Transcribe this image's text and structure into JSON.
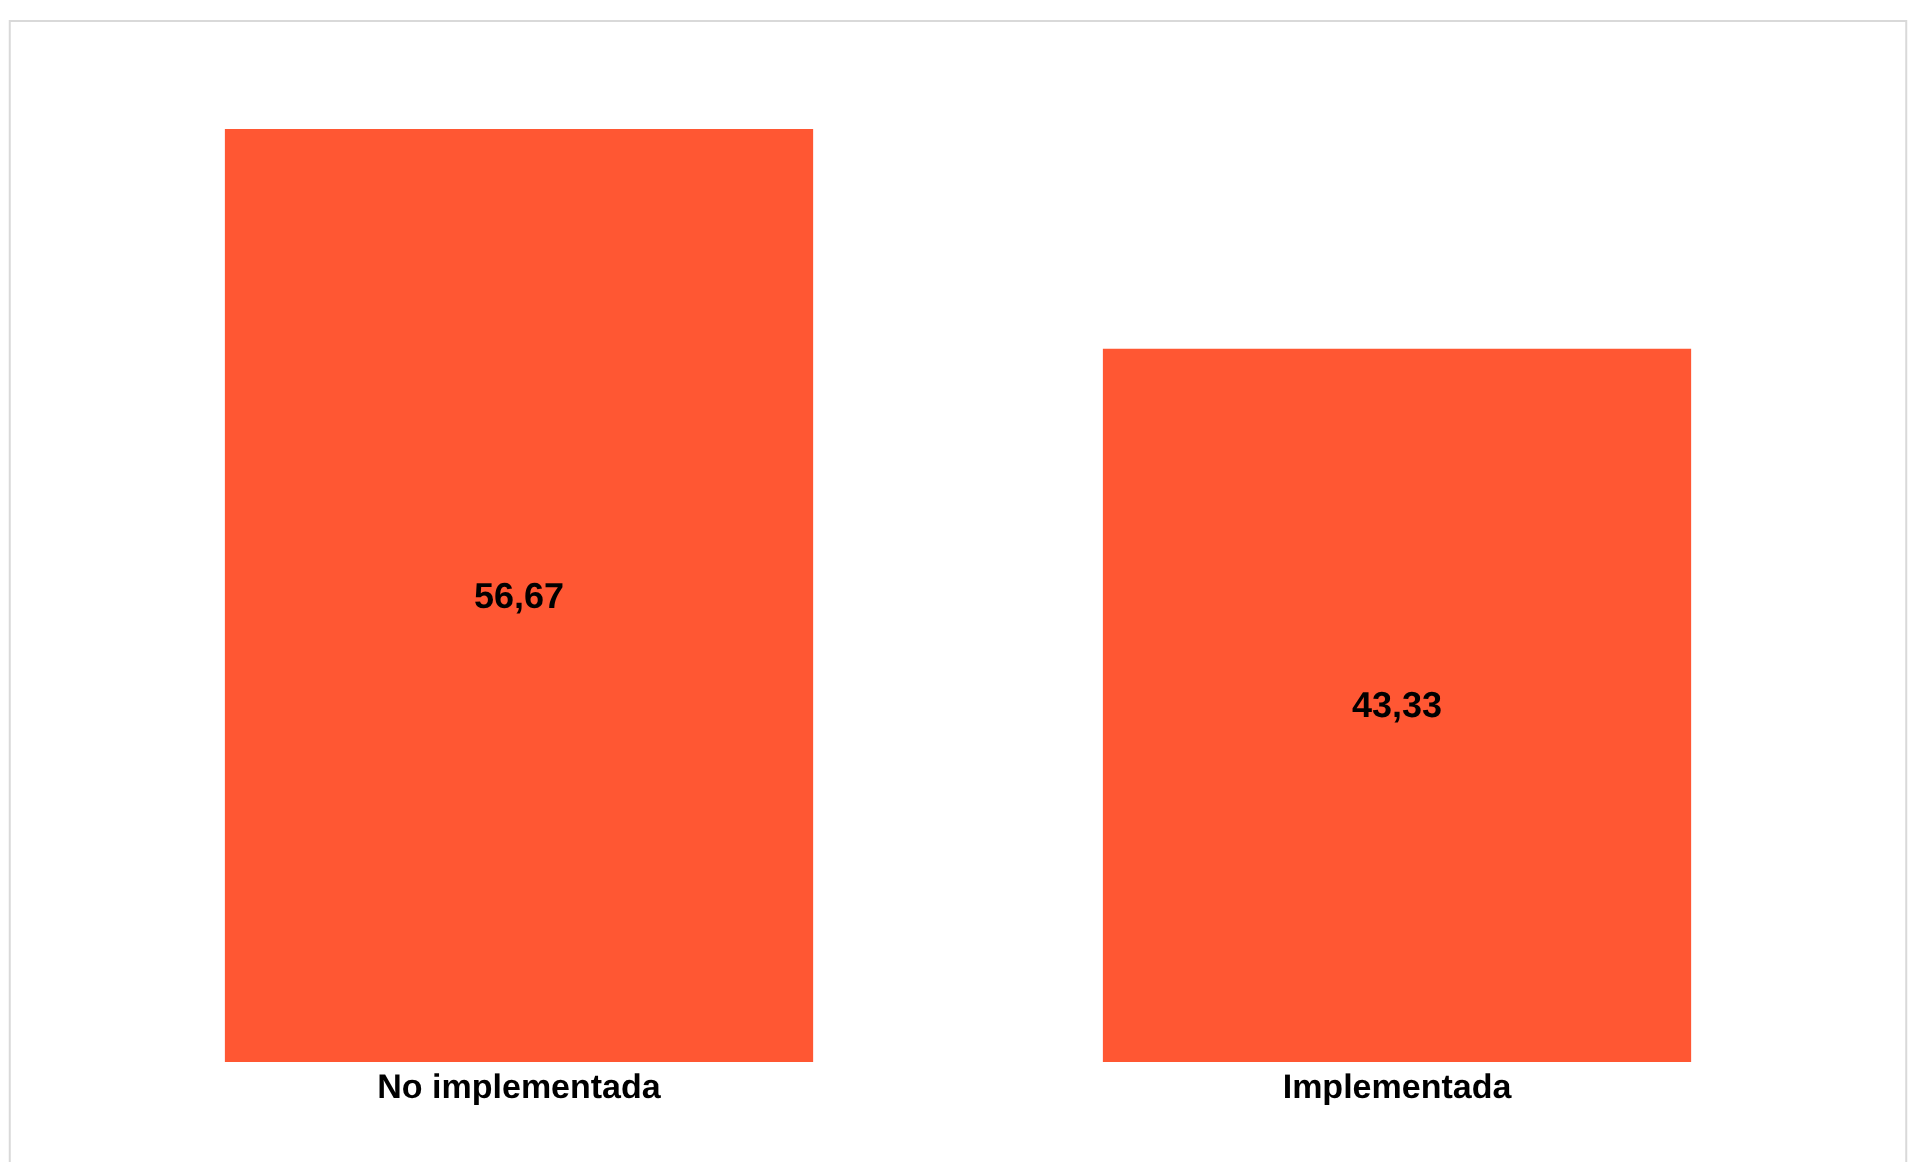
{
  "chart_data": {
    "type": "bar",
    "categories": [
      "No implementada",
      "Implementada"
    ],
    "values": [
      56.67,
      43.33
    ],
    "value_labels": [
      "56,67",
      "43,33"
    ],
    "color": "#ff5733"
  }
}
